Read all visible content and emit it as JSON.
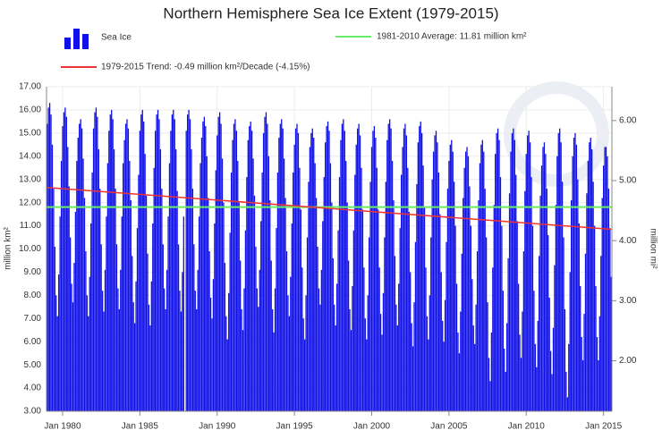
{
  "chart_data": {
    "type": "bar",
    "title": "Northern Hemisphere Sea Ice Extent (1979-2015)",
    "y_label": "million km²",
    "y2_label": "million mi²",
    "categories": [
      "1979-01",
      "1979-02",
      "1979-03",
      "1979-04",
      "1979-05",
      "1979-06",
      "1979-07",
      "1979-08",
      "1979-09",
      "1979-10",
      "1979-11",
      "1979-12",
      "1980-01",
      "1980-02",
      "1980-03",
      "1980-04",
      "1980-05",
      "1980-06",
      "1980-07",
      "1980-08",
      "1980-09",
      "1980-10",
      "1980-11",
      "1980-12",
      "1981-01",
      "1981-02",
      "1981-03",
      "1981-04",
      "1981-05",
      "1981-06",
      "1981-07",
      "1981-08",
      "1981-09",
      "1981-10",
      "1981-11",
      "1981-12",
      "1982-01",
      "1982-02",
      "1982-03",
      "1982-04",
      "1982-05",
      "1982-06",
      "1982-07",
      "1982-08",
      "1982-09",
      "1982-10",
      "1982-11",
      "1982-12",
      "1983-01",
      "1983-02",
      "1983-03",
      "1983-04",
      "1983-05",
      "1983-06",
      "1983-07",
      "1983-08",
      "1983-09",
      "1983-10",
      "1983-11",
      "1983-12",
      "1984-01",
      "1984-02",
      "1984-03",
      "1984-04",
      "1984-05",
      "1984-06",
      "1984-07",
      "1984-08",
      "1984-09",
      "1984-10",
      "1984-11",
      "1984-12",
      "1985-01",
      "1985-02",
      "1985-03",
      "1985-04",
      "1985-05",
      "1985-06",
      "1985-07",
      "1985-08",
      "1985-09",
      "1985-10",
      "1985-11",
      "1985-12",
      "1986-01",
      "1986-02",
      "1986-03",
      "1986-04",
      "1986-05",
      "1986-06",
      "1986-07",
      "1986-08",
      "1986-09",
      "1986-10",
      "1986-11",
      "1986-12",
      "1987-01",
      "1987-02",
      "1987-03",
      "1987-04",
      "1987-05",
      "1987-06",
      "1987-07",
      "1987-08",
      "1987-09",
      "1987-10",
      "1987-11",
      "1987-12",
      "1988-01",
      "1988-02",
      "1988-03",
      "1988-04",
      "1988-05",
      "1988-06",
      "1988-07",
      "1988-08",
      "1988-09",
      "1988-10",
      "1988-11",
      "1988-12",
      "1989-01",
      "1989-02",
      "1989-03",
      "1989-04",
      "1989-05",
      "1989-06",
      "1989-07",
      "1989-08",
      "1989-09",
      "1989-10",
      "1989-11",
      "1989-12",
      "1990-01",
      "1990-02",
      "1990-03",
      "1990-04",
      "1990-05",
      "1990-06",
      "1990-07",
      "1990-08",
      "1990-09",
      "1990-10",
      "1990-11",
      "1990-12",
      "1991-01",
      "1991-02",
      "1991-03",
      "1991-04",
      "1991-05",
      "1991-06",
      "1991-07",
      "1991-08",
      "1991-09",
      "1991-10",
      "1991-11",
      "1991-12",
      "1992-01",
      "1992-02",
      "1992-03",
      "1992-04",
      "1992-05",
      "1992-06",
      "1992-07",
      "1992-08",
      "1992-09",
      "1992-10",
      "1992-11",
      "1992-12",
      "1993-01",
      "1993-02",
      "1993-03",
      "1993-04",
      "1993-05",
      "1993-06",
      "1993-07",
      "1993-08",
      "1993-09",
      "1993-10",
      "1993-11",
      "1993-12",
      "1994-01",
      "1994-02",
      "1994-03",
      "1994-04",
      "1994-05",
      "1994-06",
      "1994-07",
      "1994-08",
      "1994-09",
      "1994-10",
      "1994-11",
      "1994-12",
      "1995-01",
      "1995-02",
      "1995-03",
      "1995-04",
      "1995-05",
      "1995-06",
      "1995-07",
      "1995-08",
      "1995-09",
      "1995-10",
      "1995-11",
      "1995-12",
      "1996-01",
      "1996-02",
      "1996-03",
      "1996-04",
      "1996-05",
      "1996-06",
      "1996-07",
      "1996-08",
      "1996-09",
      "1996-10",
      "1996-11",
      "1996-12",
      "1997-01",
      "1997-02",
      "1997-03",
      "1997-04",
      "1997-05",
      "1997-06",
      "1997-07",
      "1997-08",
      "1997-09",
      "1997-10",
      "1997-11",
      "1997-12",
      "1998-01",
      "1998-02",
      "1998-03",
      "1998-04",
      "1998-05",
      "1998-06",
      "1998-07",
      "1998-08",
      "1998-09",
      "1998-10",
      "1998-11",
      "1998-12",
      "1999-01",
      "1999-02",
      "1999-03",
      "1999-04",
      "1999-05",
      "1999-06",
      "1999-07",
      "1999-08",
      "1999-09",
      "1999-10",
      "1999-11",
      "1999-12",
      "2000-01",
      "2000-02",
      "2000-03",
      "2000-04",
      "2000-05",
      "2000-06",
      "2000-07",
      "2000-08",
      "2000-09",
      "2000-10",
      "2000-11",
      "2000-12",
      "2001-01",
      "2001-02",
      "2001-03",
      "2001-04",
      "2001-05",
      "2001-06",
      "2001-07",
      "2001-08",
      "2001-09",
      "2001-10",
      "2001-11",
      "2001-12",
      "2002-01",
      "2002-02",
      "2002-03",
      "2002-04",
      "2002-05",
      "2002-06",
      "2002-07",
      "2002-08",
      "2002-09",
      "2002-10",
      "2002-11",
      "2002-12",
      "2003-01",
      "2003-02",
      "2003-03",
      "2003-04",
      "2003-05",
      "2003-06",
      "2003-07",
      "2003-08",
      "2003-09",
      "2003-10",
      "2003-11",
      "2003-12",
      "2004-01",
      "2004-02",
      "2004-03",
      "2004-04",
      "2004-05",
      "2004-06",
      "2004-07",
      "2004-08",
      "2004-09",
      "2004-10",
      "2004-11",
      "2004-12",
      "2005-01",
      "2005-02",
      "2005-03",
      "2005-04",
      "2005-05",
      "2005-06",
      "2005-07",
      "2005-08",
      "2005-09",
      "2005-10",
      "2005-11",
      "2005-12",
      "2006-01",
      "2006-02",
      "2006-03",
      "2006-04",
      "2006-05",
      "2006-06",
      "2006-07",
      "2006-08",
      "2006-09",
      "2006-10",
      "2006-11",
      "2006-12",
      "2007-01",
      "2007-02",
      "2007-03",
      "2007-04",
      "2007-05",
      "2007-06",
      "2007-07",
      "2007-08",
      "2007-09",
      "2007-10",
      "2007-11",
      "2007-12",
      "2008-01",
      "2008-02",
      "2008-03",
      "2008-04",
      "2008-05",
      "2008-06",
      "2008-07",
      "2008-08",
      "2008-09",
      "2008-10",
      "2008-11",
      "2008-12",
      "2009-01",
      "2009-02",
      "2009-03",
      "2009-04",
      "2009-05",
      "2009-06",
      "2009-07",
      "2009-08",
      "2009-09",
      "2009-10",
      "2009-11",
      "2009-12",
      "2010-01",
      "2010-02",
      "2010-03",
      "2010-04",
      "2010-05",
      "2010-06",
      "2010-07",
      "2010-08",
      "2010-09",
      "2010-10",
      "2010-11",
      "2010-12",
      "2011-01",
      "2011-02",
      "2011-03",
      "2011-04",
      "2011-05",
      "2011-06",
      "2011-07",
      "2011-08",
      "2011-09",
      "2011-10",
      "2011-11",
      "2011-12",
      "2012-01",
      "2012-02",
      "2012-03",
      "2012-04",
      "2012-05",
      "2012-06",
      "2012-07",
      "2012-08",
      "2012-09",
      "2012-10",
      "2012-11",
      "2012-12",
      "2013-01",
      "2013-02",
      "2013-03",
      "2013-04",
      "2013-05",
      "2013-06",
      "2013-07",
      "2013-08",
      "2013-09",
      "2013-10",
      "2013-11",
      "2013-12",
      "2014-01",
      "2014-02",
      "2014-03",
      "2014-04",
      "2014-05",
      "2014-06",
      "2014-07",
      "2014-08",
      "2014-09",
      "2014-10",
      "2014-11",
      "2014-12",
      "2015-01",
      "2015-02",
      "2015-03",
      "2015-04",
      "2015-05",
      "2015-06",
      "2015-07"
    ],
    "series": [
      {
        "name": "Sea Ice",
        "color": "#1010e8",
        "values": [
          15.4,
          16.1,
          16.3,
          15.8,
          14.5,
          12.6,
          10.1,
          8.0,
          7.1,
          8.9,
          11.4,
          13.8,
          15.3,
          15.9,
          16.1,
          15.7,
          14.4,
          12.7,
          10.5,
          8.5,
          7.7,
          9.4,
          11.6,
          13.8,
          14.8,
          15.4,
          15.6,
          15.2,
          13.9,
          12.2,
          9.9,
          8.0,
          7.1,
          8.8,
          11.1,
          13.3,
          15.2,
          15.9,
          16.1,
          15.7,
          14.3,
          12.6,
          10.2,
          8.2,
          7.3,
          9.1,
          11.4,
          13.7,
          15.1,
          15.8,
          16.0,
          15.6,
          14.3,
          12.6,
          10.2,
          8.3,
          7.4,
          9.1,
          11.4,
          13.7,
          14.7,
          15.4,
          15.6,
          15.2,
          13.8,
          12.1,
          9.7,
          7.7,
          6.8,
          8.6,
          10.9,
          13.2,
          15.1,
          15.8,
          16.0,
          15.5,
          14.1,
          12.3,
          9.8,
          7.6,
          6.7,
          8.6,
          11.1,
          13.5,
          15.1,
          15.8,
          16.0,
          15.6,
          14.3,
          12.6,
          10.2,
          8.3,
          7.4,
          9.1,
          11.4,
          13.7,
          15.1,
          15.8,
          16.0,
          15.6,
          14.3,
          12.5,
          10.2,
          8.2,
          7.3,
          9.0,
          11.4,
          null,
          15.1,
          15.8,
          16.0,
          15.6,
          14.3,
          12.6,
          10.2,
          8.2,
          7.4,
          9.1,
          11.4,
          13.7,
          14.8,
          15.5,
          15.7,
          15.3,
          14.0,
          12.2,
          9.9,
          7.9,
          7.0,
          8.7,
          11.1,
          13.4,
          14.9,
          15.7,
          15.9,
          15.4,
          13.9,
          12.0,
          9.4,
          7.1,
          6.1,
          8.1,
          10.7,
          13.3,
          14.7,
          15.4,
          15.6,
          15.1,
          13.8,
          12.0,
          9.5,
          7.4,
          6.5,
          8.3,
          10.8,
          13.1,
          14.7,
          15.3,
          15.5,
          15.1,
          13.9,
          12.3,
          10.1,
          8.3,
          7.5,
          9.1,
          11.2,
          13.3,
          15.0,
          15.7,
          15.9,
          15.4,
          14.0,
          12.1,
          9.5,
          7.4,
          6.4,
          8.3,
          10.9,
          13.3,
          14.8,
          15.4,
          15.6,
          15.2,
          13.9,
          12.2,
          9.9,
          8.0,
          7.1,
          8.8,
          11.1,
          13.3,
          14.5,
          15.2,
          15.4,
          15.0,
          13.5,
          11.7,
          9.2,
          7.0,
          6.1,
          8.0,
          10.5,
          12.9,
          14.4,
          15.0,
          15.2,
          14.8,
          13.7,
          12.2,
          10.1,
          8.3,
          7.6,
          9.1,
          11.2,
          13.1,
          14.6,
          15.3,
          15.5,
          15.1,
          13.7,
          12.0,
          9.6,
          7.6,
          6.7,
          8.5,
          10.8,
          13.1,
          14.7,
          15.4,
          15.6,
          15.1,
          13.8,
          12.0,
          9.5,
          7.4,
          6.5,
          8.4,
          10.8,
          13.2,
          14.5,
          15.2,
          15.4,
          14.9,
          13.5,
          11.7,
          9.2,
          7.0,
          6.1,
          8.0,
          10.5,
          12.9,
          14.4,
          15.1,
          15.3,
          14.8,
          13.5,
          11.7,
          9.2,
          7.2,
          6.3,
          8.1,
          10.5,
          12.9,
          14.7,
          15.4,
          15.6,
          15.2,
          13.8,
          12.1,
          9.7,
          7.6,
          6.7,
          8.5,
          10.9,
          13.2,
          14.4,
          15.2,
          15.4,
          14.9,
          13.5,
          11.6,
          9.0,
          6.8,
          5.8,
          7.7,
          10.3,
          12.8,
          14.6,
          15.3,
          15.5,
          15.0,
          13.6,
          11.8,
          9.2,
          7.1,
          6.1,
          8.0,
          10.5,
          13.0,
          14.2,
          14.9,
          15.1,
          14.6,
          13.3,
          11.5,
          9.0,
          6.9,
          6.0,
          7.8,
          10.3,
          12.6,
          13.8,
          14.5,
          14.7,
          14.2,
          12.9,
          11.0,
          8.5,
          6.4,
          5.5,
          7.3,
          9.8,
          12.2,
          13.5,
          14.2,
          14.4,
          14.0,
          12.7,
          11.0,
          8.7,
          6.7,
          5.9,
          7.6,
          9.9,
          12.1,
          13.7,
          14.5,
          14.7,
          14.2,
          12.6,
          10.5,
          7.7,
          5.3,
          4.3,
          6.4,
          9.2,
          11.9,
          14.1,
          15.0,
          15.2,
          14.7,
          13.1,
          11.0,
          8.2,
          5.7,
          4.7,
          6.8,
          9.6,
          12.4,
          14.2,
          15.0,
          15.2,
          14.7,
          13.2,
          11.2,
          8.5,
          6.3,
          5.3,
          7.3,
          9.9,
          12.5,
          14.1,
          14.9,
          15.1,
          14.6,
          13.1,
          11.0,
          8.2,
          5.9,
          4.9,
          6.9,
          9.7,
          12.3,
          13.6,
          14.4,
          14.6,
          14.1,
          12.6,
          10.6,
          7.9,
          5.6,
          4.6,
          6.6,
          9.3,
          11.9,
          14.0,
          15.0,
          15.2,
          14.6,
          12.9,
          10.5,
          7.4,
          4.7,
          3.6,
          5.9,
          9.0,
          12.1,
          14.0,
          14.8,
          15.0,
          14.5,
          13.0,
          11.1,
          8.4,
          6.2,
          5.2,
          7.2,
          9.8,
          12.4,
          13.8,
          14.6,
          14.8,
          14.3,
          12.9,
          11.0,
          8.4,
          6.2,
          5.2,
          7.1,
          9.7,
          12.2,
          13.6,
          14.4,
          14.4,
          14.0,
          12.6,
          10.9,
          8.8
        ]
      }
    ],
    "average": {
      "name": "1981-2010 Average: 11.81 million km²",
      "color": "#66ee66",
      "value": 11.81
    },
    "trend": {
      "name": "1979-2015 Trend: -0.49 million km²/Decade (-4.15%)",
      "color": "#ee3333",
      "x": [
        "1979-01",
        "2015-07"
      ],
      "values": [
        12.65,
        10.85
      ]
    },
    "ylim": [
      3,
      17
    ],
    "yticks": [
      {
        "value": 3,
        "label": "3.00"
      },
      {
        "value": 4,
        "label": "4.00"
      },
      {
        "value": 5,
        "label": "5.00"
      },
      {
        "value": 6,
        "label": "6.00"
      },
      {
        "value": 7,
        "label": "7.00"
      },
      {
        "value": 8,
        "label": "8.00"
      },
      {
        "value": 9,
        "label": "9.00"
      },
      {
        "value": 10,
        "label": "10.00"
      },
      {
        "value": 11,
        "label": "11.00"
      },
      {
        "value": 12,
        "label": "12.00"
      },
      {
        "value": 13,
        "label": "13.00"
      },
      {
        "value": 14,
        "label": "14.00"
      },
      {
        "value": 15,
        "label": "15.00"
      },
      {
        "value": 16,
        "label": "16.00"
      },
      {
        "value": 17,
        "label": "17.00"
      }
    ],
    "y2lim": [
      1.1583,
      6.5637
    ],
    "y2ticks": [
      {
        "value": 2,
        "label": "2.00"
      },
      {
        "value": 3,
        "label": "3.00"
      },
      {
        "value": 4,
        "label": "4.00"
      },
      {
        "value": 5,
        "label": "5.00"
      },
      {
        "value": 6,
        "label": "6.00"
      }
    ],
    "xticks": [
      {
        "value": "1980-01",
        "label": "Jan 1980"
      },
      {
        "value": "1985-01",
        "label": "Jan 1985"
      },
      {
        "value": "1990-01",
        "label": "Jan 1990"
      },
      {
        "value": "1995-01",
        "label": "Jan 1995"
      },
      {
        "value": "2000-01",
        "label": "Jan 2000"
      },
      {
        "value": "2005-01",
        "label": "Jan 2005"
      },
      {
        "value": "2010-01",
        "label": "Jan 2010"
      },
      {
        "value": "2015-01",
        "label": "Jan 2015"
      }
    ],
    "grid": true
  }
}
